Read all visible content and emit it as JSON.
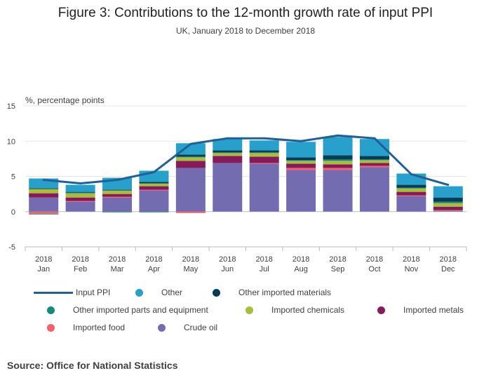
{
  "header": {
    "title": "Figure 3: Contributions to the 12-month growth rate of input PPI",
    "subtitle": "UK, January 2018 to December 2018"
  },
  "footer": {
    "source": "Source: Office for National Statistics"
  },
  "chart_data": {
    "type": "bar",
    "stacked": true,
    "title": "Figure 3: Contributions to the 12-month growth rate of input PPI",
    "subtitle": "UK, January 2018 to December 2018",
    "ylabel": "%, percentage points",
    "ylim": [
      -5,
      15
    ],
    "yticks": [
      -5,
      0,
      5,
      10,
      15
    ],
    "grid": true,
    "legend_position": "bottom",
    "categories": [
      [
        "2018",
        "Jan"
      ],
      [
        "2018",
        "Feb"
      ],
      [
        "2018",
        "Mar"
      ],
      [
        "2018",
        "Apr"
      ],
      [
        "2018",
        "May"
      ],
      [
        "2018",
        "Jun"
      ],
      [
        "2018",
        "Jul"
      ],
      [
        "2018",
        "Aug"
      ],
      [
        "2018",
        "Sep"
      ],
      [
        "2018",
        "Oct"
      ],
      [
        "2018",
        "Nov"
      ],
      [
        "2018",
        "Dec"
      ]
    ],
    "line": {
      "name": "Input PPI",
      "color": "#206095",
      "values": [
        4.5,
        4.0,
        4.5,
        5.6,
        9.6,
        10.4,
        10.4,
        10.0,
        10.8,
        10.4,
        5.3,
        3.8
      ]
    },
    "series": [
      {
        "name": "Crude oil",
        "color": "#746cb1",
        "values": [
          2.0,
          1.4,
          2.0,
          3.0,
          6.2,
          6.9,
          6.8,
          5.9,
          5.9,
          6.3,
          2.2,
          0.1
        ]
      },
      {
        "name": "Imported food",
        "color": "#f66068",
        "values": [
          -0.3,
          0.1,
          0.1,
          0.1,
          -0.2,
          0.0,
          0.1,
          0.3,
          0.3,
          0.2,
          0.1,
          0.1
        ]
      },
      {
        "name": "Imported metals",
        "color": "#871a5b",
        "values": [
          0.6,
          0.5,
          0.4,
          0.5,
          1.0,
          1.0,
          0.9,
          0.6,
          0.5,
          0.4,
          0.5,
          0.5
        ]
      },
      {
        "name": "Imported chemicals",
        "color": "#a8bd3a",
        "values": [
          0.6,
          0.6,
          0.5,
          0.4,
          0.5,
          0.4,
          0.5,
          0.4,
          0.5,
          0.4,
          0.5,
          0.5
        ]
      },
      {
        "name": "Other imported parts and equipment",
        "color": "#118c7b",
        "values": [
          -0.1,
          0.1,
          -0.1,
          -0.1,
          0.1,
          0.1,
          0.1,
          0.1,
          0.2,
          0.1,
          0.1,
          0.2
        ]
      },
      {
        "name": "Other imported materials",
        "color": "#003c57",
        "values": [
          0.1,
          0.1,
          0.1,
          0.2,
          0.3,
          0.3,
          0.3,
          0.4,
          0.6,
          0.5,
          0.4,
          0.6
        ]
      },
      {
        "name": "Other",
        "color": "#27a0cc",
        "values": [
          1.4,
          1.0,
          1.7,
          1.6,
          1.6,
          1.6,
          1.4,
          2.2,
          2.6,
          2.4,
          1.6,
          1.6
        ]
      }
    ],
    "legend_order": [
      "Input PPI",
      "Other",
      "Other imported materials",
      "Other imported parts and equipment",
      "Imported chemicals",
      "Imported metals",
      "Imported food",
      "Crude oil"
    ]
  }
}
